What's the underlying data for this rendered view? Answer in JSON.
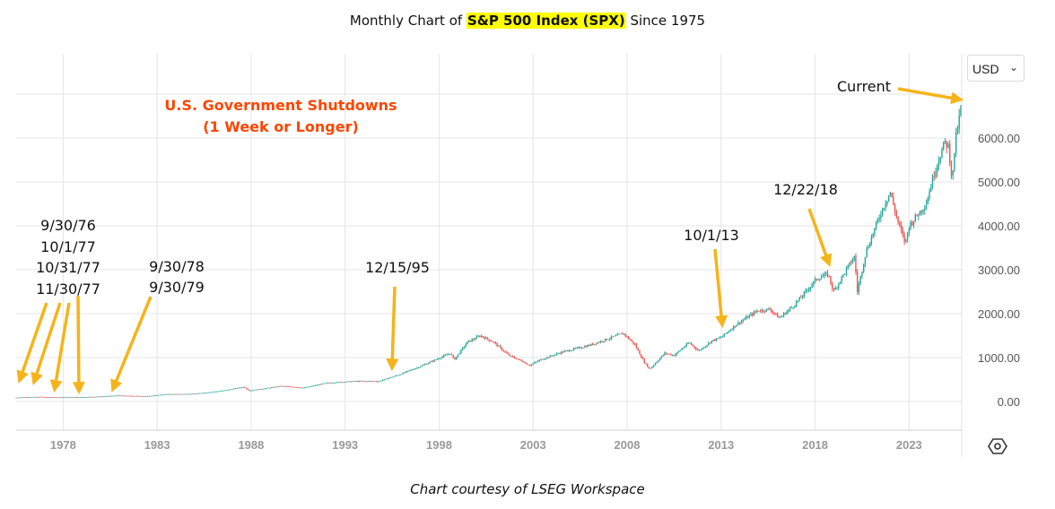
{
  "title": {
    "prefix": "Monthly Chart of ",
    "highlight": "S&P 500 Index (SPX)",
    "suffix": " Since 1975"
  },
  "currency_selector": {
    "value": "USD",
    "icon": "chevron-down-icon"
  },
  "settings_icon": "gear-icon",
  "caption": "Chart courtesy of LSEG Workspace",
  "chart_data": {
    "type": "candlestick",
    "title": "Monthly Chart of S&P 500 Index (SPX) Since 1975",
    "x_ticks": [
      "1978",
      "1983",
      "1988",
      "1993",
      "1998",
      "2003",
      "2008",
      "2013",
      "2018",
      "2023"
    ],
    "y_ticks": [
      "0.00",
      "1000.00",
      "2000.00",
      "3000.00",
      "4000.00",
      "5000.00",
      "6000.00"
    ],
    "xlim": [
      1975.5,
      2025.8
    ],
    "ylim": [
      -200,
      7300
    ],
    "grid": true,
    "colors": {
      "up": "#26a69a",
      "down": "#ef5350",
      "annotation": "#f4b41a",
      "shutdown_text": "#ff4500",
      "grid": "#e6e6e6"
    },
    "price_path": [
      [
        1975.5,
        90
      ],
      [
        1976.7,
        105
      ],
      [
        1977.8,
        95
      ],
      [
        1978.8,
        97
      ],
      [
        1979.7,
        108
      ],
      [
        1980.9,
        135
      ],
      [
        1982.5,
        120
      ],
      [
        1983.5,
        165
      ],
      [
        1985.0,
        175
      ],
      [
        1986.5,
        245
      ],
      [
        1987.6,
        330
      ],
      [
        1987.9,
        245
      ],
      [
        1989.6,
        350
      ],
      [
        1990.8,
        310
      ],
      [
        1992.0,
        420
      ],
      [
        1993.5,
        460
      ],
      [
        1994.8,
        460
      ],
      [
        1995.9,
        615
      ],
      [
        1997.0,
        800
      ],
      [
        1998.6,
        1100
      ],
      [
        1998.8,
        950
      ],
      [
        1999.5,
        1350
      ],
      [
        2000.2,
        1500
      ],
      [
        2000.9,
        1350
      ],
      [
        2001.7,
        1050
      ],
      [
        2002.5,
        900
      ],
      [
        2002.8,
        820
      ],
      [
        2003.4,
        950
      ],
      [
        2004.5,
        1120
      ],
      [
        2006.0,
        1280
      ],
      [
        2007.8,
        1550
      ],
      [
        2008.4,
        1300
      ],
      [
        2008.9,
        900
      ],
      [
        2009.2,
        735
      ],
      [
        2010.0,
        1100
      ],
      [
        2010.5,
        1050
      ],
      [
        2011.3,
        1340
      ],
      [
        2011.8,
        1150
      ],
      [
        2012.5,
        1380
      ],
      [
        2013.0,
        1460
      ],
      [
        2013.8,
        1750
      ],
      [
        2014.9,
        2060
      ],
      [
        2015.6,
        2100
      ],
      [
        2016.1,
        1900
      ],
      [
        2016.9,
        2200
      ],
      [
        2017.9,
        2700
      ],
      [
        2018.1,
        2800
      ],
      [
        2018.7,
        2900
      ],
      [
        2018.98,
        2500
      ],
      [
        2019.8,
        3100
      ],
      [
        2020.1,
        3300
      ],
      [
        2020.25,
        2500
      ],
      [
        2020.7,
        3400
      ],
      [
        2021.5,
        4300
      ],
      [
        2021.99,
        4770
      ],
      [
        2022.4,
        4100
      ],
      [
        2022.8,
        3600
      ],
      [
        2023.0,
        4000
      ],
      [
        2023.9,
        4500
      ],
      [
        2024.4,
        5300
      ],
      [
        2024.9,
        5900
      ],
      [
        2025.1,
        5800
      ],
      [
        2025.3,
        5000
      ],
      [
        2025.45,
        5900
      ],
      [
        2025.8,
        6780
      ]
    ],
    "annotations": {
      "shutdown_label": [
        "U.S. Government Shutdowns",
        "(1 Week or Longer)"
      ],
      "date_group_1": [
        "9/30/76",
        "10/1/77",
        "10/31/77",
        "11/30/77"
      ],
      "date_group_2": [
        "9/30/78",
        "9/30/79"
      ],
      "date_1995": "12/15/95",
      "date_2013": "10/1/13",
      "date_2018": "12/22/18",
      "current": "Current"
    }
  }
}
